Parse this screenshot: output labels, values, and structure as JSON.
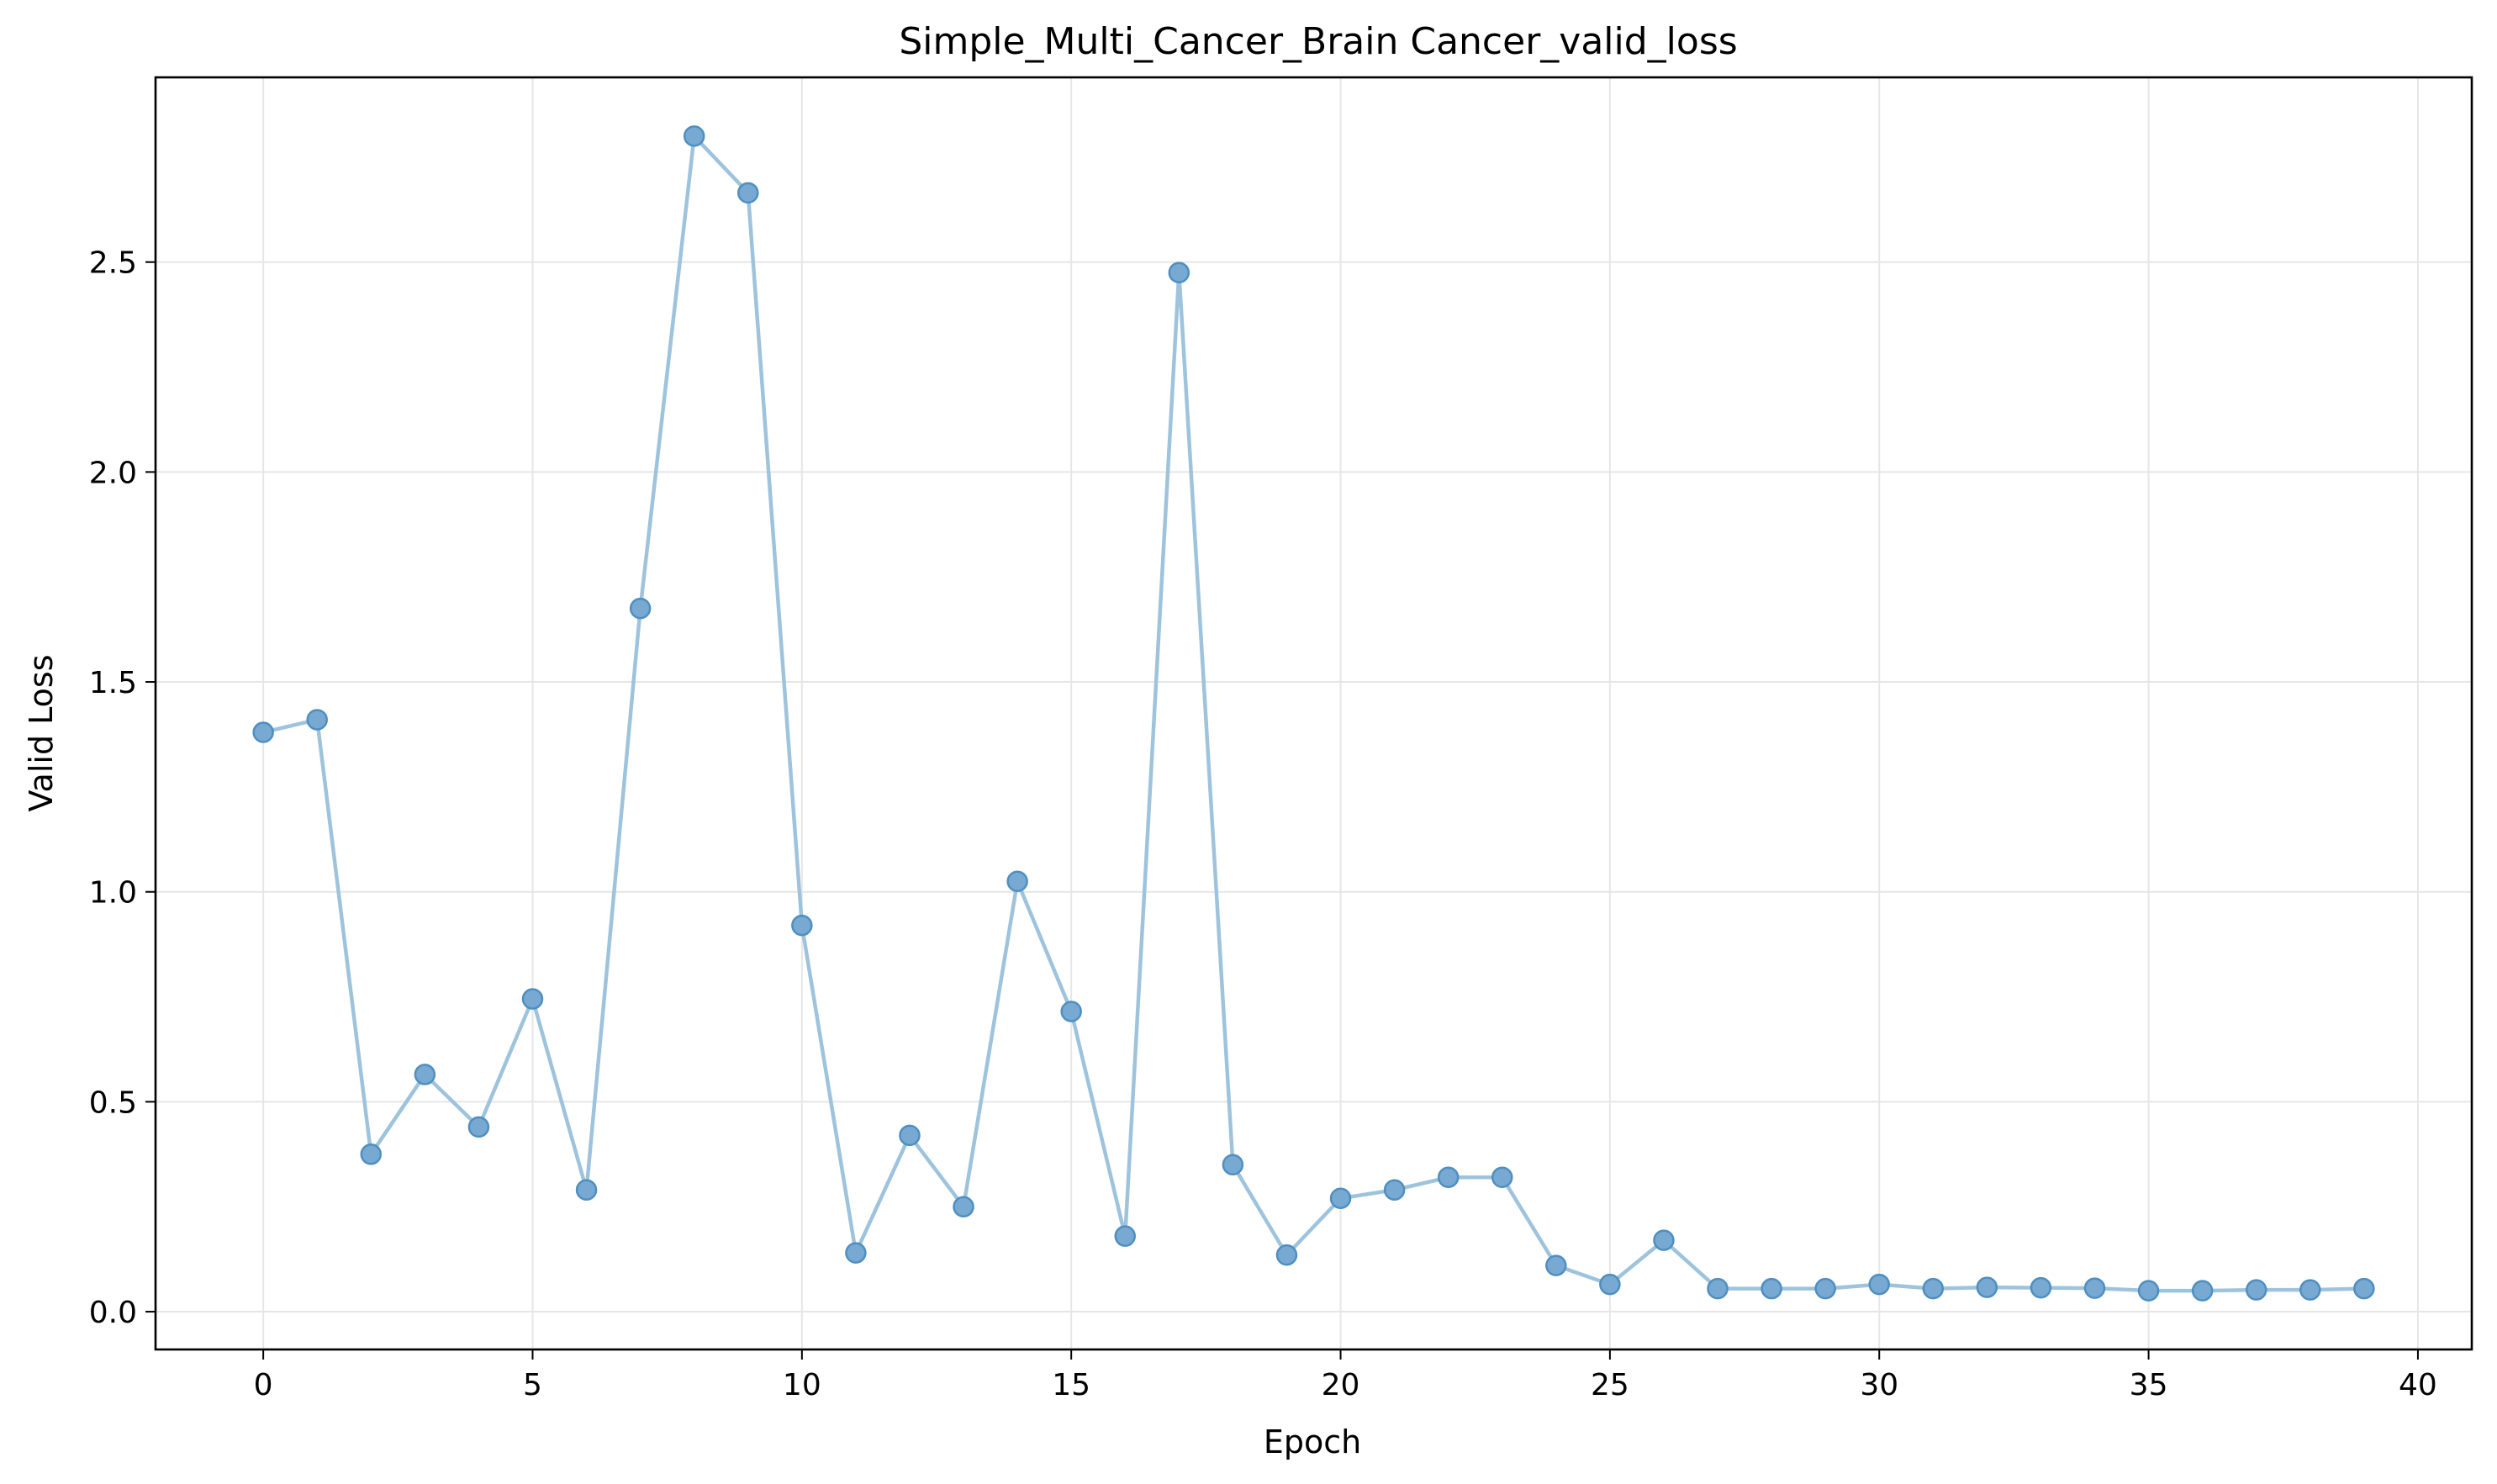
{
  "chart_data": {
    "type": "line",
    "title": "Simple_Multi_Cancer_Brain Cancer_valid_loss",
    "xlabel": "Epoch",
    "ylabel": "Valid Loss",
    "xlim": [
      -2,
      41
    ],
    "ylim": [
      -0.09,
      2.94
    ],
    "xticks": [
      0,
      5,
      10,
      15,
      20,
      25,
      30,
      35,
      40
    ],
    "xtick_labels": [
      "0",
      "5",
      "10",
      "15",
      "20",
      "25",
      "30",
      "35",
      "40"
    ],
    "yticks": [
      0.0,
      0.5,
      1.0,
      1.5,
      2.0,
      2.5
    ],
    "ytick_labels": [
      "0.0",
      "0.5",
      "1.0",
      "1.5",
      "2.0",
      "2.5"
    ],
    "grid": true,
    "markers": true,
    "colors": {
      "line": "#9ec3dc",
      "marker_fill": "#77a9d2",
      "marker_edge": "#4f8fc0",
      "grid": "#e6e6e6",
      "axes": "#000000"
    },
    "series": [
      {
        "x": [
          0,
          1,
          2,
          3,
          4,
          5,
          6,
          7,
          8,
          9,
          10,
          11,
          12,
          13,
          14,
          15,
          16,
          17,
          18,
          19,
          20,
          21,
          22,
          23,
          24,
          25,
          26,
          27,
          28,
          29,
          30,
          31,
          32,
          33,
          34,
          35,
          36,
          37,
          38,
          39
        ],
        "values": [
          1.38,
          1.41,
          0.375,
          0.565,
          0.44,
          0.745,
          0.29,
          1.675,
          2.8,
          2.665,
          0.92,
          0.14,
          0.42,
          0.25,
          1.025,
          0.715,
          0.18,
          2.475,
          0.35,
          0.135,
          0.27,
          0.29,
          0.32,
          0.32,
          0.11,
          0.065,
          0.17,
          0.055,
          0.055,
          0.055,
          0.065,
          0.055,
          0.058,
          0.057,
          0.056,
          0.05,
          0.05,
          0.052,
          0.052,
          0.055
        ]
      }
    ]
  }
}
